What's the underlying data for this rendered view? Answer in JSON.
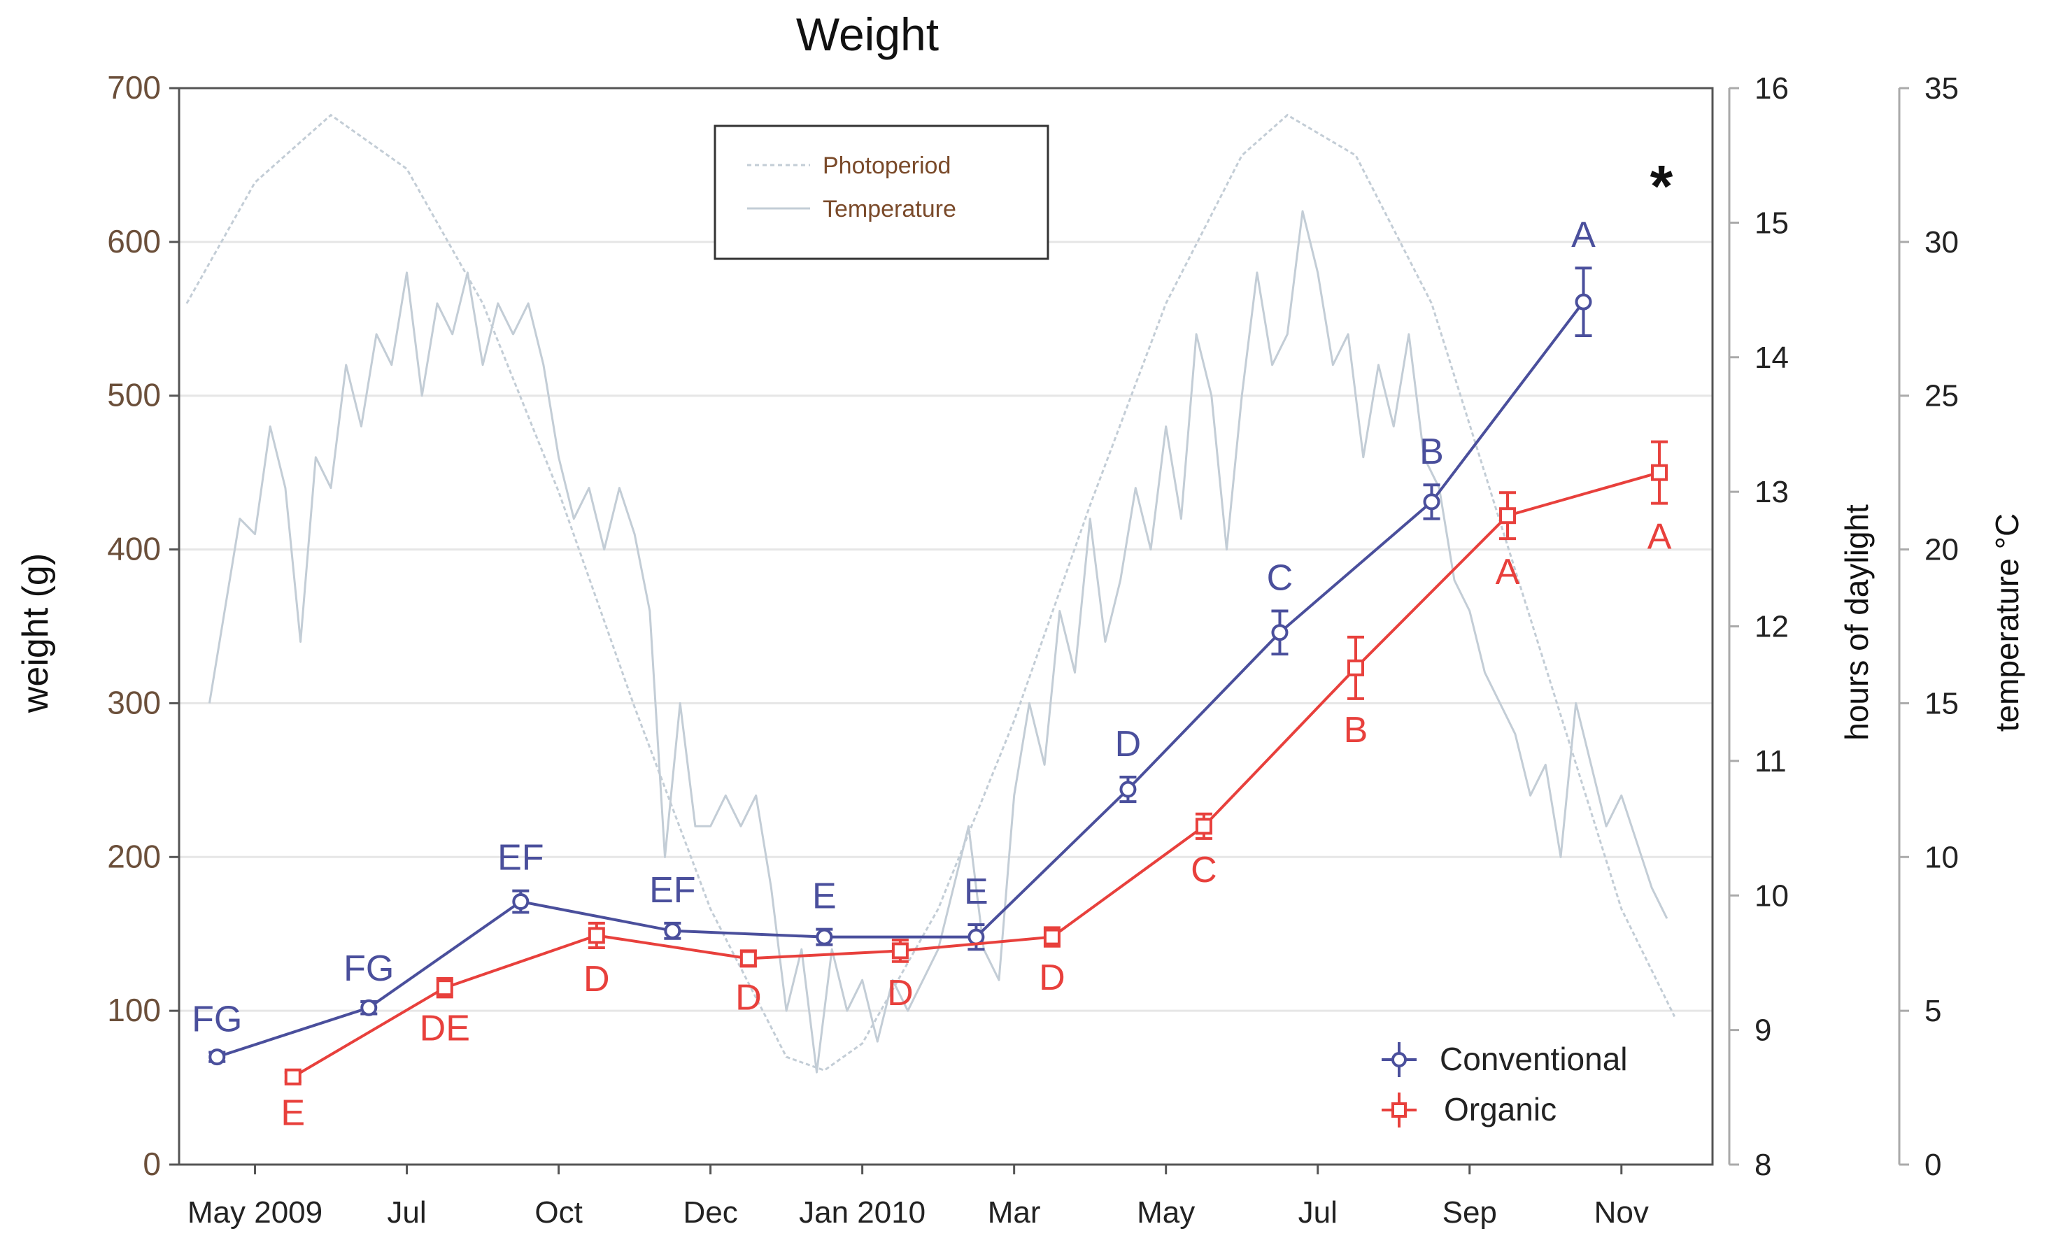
{
  "chart_data": {
    "type": "line",
    "title": "Weight",
    "x_ticks": [
      {
        "label": "May 2009",
        "month": 0
      },
      {
        "label": "Jul",
        "month": 2
      },
      {
        "label": "Oct",
        "month": 4
      },
      {
        "label": "Dec",
        "month": 6
      },
      {
        "label": "Jan 2010",
        "month": 8
      },
      {
        "label": "Mar",
        "month": 10
      },
      {
        "label": "May",
        "month": 12
      },
      {
        "label": "Jul",
        "month": 14
      },
      {
        "label": "Sep",
        "month": 16
      },
      {
        "label": "Nov",
        "month": 18
      }
    ],
    "xlim": [
      -1,
      19.2
    ],
    "y_left": {
      "label": "weight (g)",
      "lim": [
        0,
        700
      ],
      "ticks": [
        0,
        100,
        200,
        300,
        400,
        500,
        600,
        700
      ]
    },
    "y_right1": {
      "label": "hours of daylight",
      "lim": [
        8,
        16
      ],
      "ticks": [
        8,
        9,
        10,
        11,
        12,
        13,
        14,
        15,
        16
      ]
    },
    "y_right2": {
      "label": "temperature °C",
      "lim": [
        0,
        35
      ],
      "ticks": [
        0,
        5,
        10,
        15,
        20,
        25,
        30,
        35
      ]
    },
    "series": [
      {
        "name": "Conventional",
        "color": "#4a4f9c",
        "marker": "circle",
        "points": [
          {
            "x": -0.5,
            "y": 70,
            "err": 3,
            "label": "FG"
          },
          {
            "x": 1.5,
            "y": 102,
            "err": 4,
            "label": "FG"
          },
          {
            "x": 3.5,
            "y": 171,
            "err": 7,
            "label": "EF"
          },
          {
            "x": 5.5,
            "y": 152,
            "err": 5,
            "label": "EF"
          },
          {
            "x": 7.5,
            "y": 148,
            "err": 5,
            "label": "E"
          },
          {
            "x": 9.5,
            "y": 148,
            "err": 8,
            "label": "E"
          },
          {
            "x": 11.5,
            "y": 244,
            "err": 8,
            "label": "D"
          },
          {
            "x": 13.5,
            "y": 346,
            "err": 14,
            "label": "C"
          },
          {
            "x": 15.5,
            "y": 431,
            "err": 11,
            "label": "B"
          },
          {
            "x": 17.5,
            "y": 561,
            "err": 22,
            "label": "A"
          }
        ]
      },
      {
        "name": "Organic",
        "color": "#e8403c",
        "marker": "square",
        "points": [
          {
            "x": 0.5,
            "y": 57,
            "err": 3,
            "label": "E"
          },
          {
            "x": 2.5,
            "y": 115,
            "err": 6,
            "label": "DE"
          },
          {
            "x": 4.5,
            "y": 149,
            "err": 8,
            "label": "D"
          },
          {
            "x": 6.5,
            "y": 134,
            "err": 5,
            "label": "D"
          },
          {
            "x": 8.5,
            "y": 139,
            "err": 7,
            "label": "D"
          },
          {
            "x": 10.5,
            "y": 148,
            "err": 6,
            "label": "D"
          },
          {
            "x": 12.5,
            "y": 220,
            "err": 8,
            "label": "C"
          },
          {
            "x": 14.5,
            "y": 323,
            "err": 20,
            "label": "B"
          },
          {
            "x": 16.5,
            "y": 422,
            "err": 15,
            "label": "A"
          },
          {
            "x": 18.5,
            "y": 450,
            "err": 20,
            "label": "A"
          }
        ]
      }
    ],
    "photoperiod": {
      "name": "Photoperiod",
      "axis": "hours of daylight",
      "points": [
        [
          -0.9,
          14.4
        ],
        [
          0.0,
          15.3
        ],
        [
          1.0,
          15.8
        ],
        [
          2.0,
          15.4
        ],
        [
          3.0,
          14.4
        ],
        [
          4.0,
          13.0
        ],
        [
          5.0,
          11.4
        ],
        [
          6.0,
          9.9
        ],
        [
          7.0,
          8.8
        ],
        [
          7.5,
          8.7
        ],
        [
          8.0,
          8.9
        ],
        [
          9.0,
          9.9
        ],
        [
          10.0,
          11.3
        ],
        [
          11.0,
          12.9
        ],
        [
          12.0,
          14.4
        ],
        [
          13.0,
          15.5
        ],
        [
          13.6,
          15.8
        ],
        [
          14.5,
          15.5
        ],
        [
          15.5,
          14.4
        ],
        [
          16.5,
          12.6
        ],
        [
          17.5,
          10.8
        ],
        [
          18.0,
          9.9
        ],
        [
          18.7,
          9.1
        ]
      ]
    },
    "temperature": {
      "name": "Temperature",
      "axis": "temperature °C",
      "points": [
        [
          -0.6,
          15
        ],
        [
          -0.4,
          18
        ],
        [
          -0.2,
          21
        ],
        [
          0.0,
          20.5
        ],
        [
          0.2,
          24
        ],
        [
          0.4,
          22
        ],
        [
          0.6,
          17
        ],
        [
          0.8,
          23
        ],
        [
          1.0,
          22
        ],
        [
          1.2,
          26
        ],
        [
          1.4,
          24
        ],
        [
          1.6,
          27
        ],
        [
          1.8,
          26
        ],
        [
          2.0,
          29
        ],
        [
          2.2,
          25
        ],
        [
          2.4,
          28
        ],
        [
          2.6,
          27
        ],
        [
          2.8,
          29
        ],
        [
          3.0,
          26
        ],
        [
          3.2,
          28
        ],
        [
          3.4,
          27
        ],
        [
          3.6,
          28
        ],
        [
          3.8,
          26
        ],
        [
          4.0,
          23
        ],
        [
          4.2,
          21
        ],
        [
          4.4,
          22
        ],
        [
          4.6,
          20
        ],
        [
          4.8,
          22
        ],
        [
          5.0,
          20.5
        ],
        [
          5.2,
          18
        ],
        [
          5.4,
          10
        ],
        [
          5.6,
          15
        ],
        [
          5.8,
          11
        ],
        [
          6.0,
          11
        ],
        [
          6.2,
          12
        ],
        [
          6.4,
          11
        ],
        [
          6.6,
          12
        ],
        [
          6.8,
          9
        ],
        [
          7.0,
          5
        ],
        [
          7.2,
          7
        ],
        [
          7.4,
          3
        ],
        [
          7.6,
          7
        ],
        [
          7.8,
          5
        ],
        [
          8.0,
          6
        ],
        [
          8.2,
          4
        ],
        [
          8.4,
          6
        ],
        [
          8.6,
          5
        ],
        [
          8.8,
          6
        ],
        [
          9.0,
          7
        ],
        [
          9.2,
          9
        ],
        [
          9.4,
          11
        ],
        [
          9.6,
          7
        ],
        [
          9.8,
          6
        ],
        [
          10.0,
          12
        ],
        [
          10.2,
          15
        ],
        [
          10.4,
          13
        ],
        [
          10.6,
          18
        ],
        [
          10.8,
          16
        ],
        [
          11.0,
          21
        ],
        [
          11.2,
          17
        ],
        [
          11.4,
          19
        ],
        [
          11.6,
          22
        ],
        [
          11.8,
          20
        ],
        [
          12.0,
          24
        ],
        [
          12.2,
          21
        ],
        [
          12.4,
          27
        ],
        [
          12.6,
          25
        ],
        [
          12.8,
          20
        ],
        [
          13.0,
          25
        ],
        [
          13.2,
          29
        ],
        [
          13.4,
          26
        ],
        [
          13.6,
          27
        ],
        [
          13.8,
          31
        ],
        [
          14.0,
          29
        ],
        [
          14.2,
          26
        ],
        [
          14.4,
          27
        ],
        [
          14.6,
          23
        ],
        [
          14.8,
          26
        ],
        [
          15.0,
          24
        ],
        [
          15.2,
          27
        ],
        [
          15.4,
          23
        ],
        [
          15.6,
          22
        ],
        [
          15.8,
          19
        ],
        [
          16.0,
          18
        ],
        [
          16.2,
          16
        ],
        [
          16.4,
          15
        ],
        [
          16.6,
          14
        ],
        [
          16.8,
          12
        ],
        [
          17.0,
          13
        ],
        [
          17.2,
          10
        ],
        [
          17.4,
          15
        ],
        [
          17.6,
          13
        ],
        [
          17.8,
          11
        ],
        [
          18.0,
          12
        ],
        [
          18.2,
          10.5
        ],
        [
          18.4,
          9
        ],
        [
          18.6,
          8
        ]
      ]
    },
    "legend_lines": {
      "position": "top-center",
      "entries": [
        "Photoperiod",
        "Temperature"
      ]
    },
    "legend_series": {
      "position": "bottom-right",
      "entries": [
        "Conventional",
        "Organic"
      ]
    },
    "annotations": [
      {
        "text": "*",
        "position": "top-right"
      }
    ],
    "colors": {
      "conventional": "#4a4f9c",
      "organic": "#e8403c",
      "background_lines": "#c3cdd6",
      "axis": "#555555",
      "gridline": "#e6e6e6",
      "tick_label_left": "#6b4f3a",
      "tick_label": "#222222"
    }
  }
}
